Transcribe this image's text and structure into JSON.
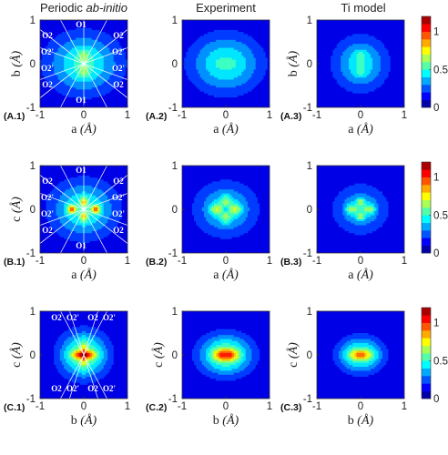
{
  "figure": {
    "column_titles": [
      {
        "prefix": "Periodic ",
        "italic": "ab-initio"
      },
      {
        "prefix": "Experiment",
        "italic": ""
      },
      {
        "prefix": "Ti model",
        "italic": ""
      }
    ],
    "axis_unit": "(Å)"
  },
  "chart_data": [
    {
      "type": "heatmap",
      "id": "A.1",
      "label": "(A.1)",
      "xlabel": "a",
      "ylabel": "b",
      "xlim": [
        -1,
        1
      ],
      "ylim": [
        -1,
        1
      ],
      "xticks": [
        "-1",
        "0",
        "1"
      ],
      "yticks": [
        "-1",
        "0",
        "1"
      ],
      "plane": "ab",
      "source": "abinitio",
      "oxygen_labels": [
        "O1",
        "O1",
        "O2",
        "O2",
        "O2'",
        "O2'",
        "O2",
        "O2",
        "O2'",
        "O2'"
      ]
    },
    {
      "type": "heatmap",
      "id": "A.2",
      "label": "(A.2)",
      "xlabel": "a",
      "ylabel": "",
      "xlim": [
        -1,
        1
      ],
      "ylim": [
        -1,
        1
      ],
      "xticks": [
        "-1",
        "0",
        "1"
      ],
      "yticks": [
        "-1",
        "0",
        "1"
      ],
      "plane": "ab",
      "source": "experiment"
    },
    {
      "type": "heatmap",
      "id": "A.3",
      "label": "(A.3)",
      "xlabel": "a",
      "ylabel": "b",
      "xlim": [
        -1,
        1
      ],
      "ylim": [
        -1,
        1
      ],
      "xticks": [
        "-1",
        "0",
        "1"
      ],
      "yticks": [
        "-1",
        "0",
        "1"
      ],
      "plane": "ab",
      "source": "ti"
    },
    {
      "type": "heatmap",
      "id": "B.1",
      "label": "(B.1)",
      "xlabel": "a",
      "ylabel": "c",
      "xlim": [
        -1,
        1
      ],
      "ylim": [
        -1,
        1
      ],
      "xticks": [
        "-1",
        "0",
        "1"
      ],
      "yticks": [
        "-1",
        "0",
        "1"
      ],
      "plane": "ac",
      "source": "abinitio",
      "oxygen_labels": [
        "O1",
        "O1",
        "O2",
        "O2",
        "O2'",
        "O2'",
        "O2",
        "O2",
        "O2'",
        "O2'"
      ]
    },
    {
      "type": "heatmap",
      "id": "B.2",
      "label": "(B.2)",
      "xlabel": "a",
      "ylabel": "",
      "xlim": [
        -1,
        1
      ],
      "ylim": [
        -1,
        1
      ],
      "xticks": [
        "-1",
        "0",
        "1"
      ],
      "yticks": [
        "-1",
        "0",
        "1"
      ],
      "plane": "ac",
      "source": "experiment"
    },
    {
      "type": "heatmap",
      "id": "B.3",
      "label": "(B.3)",
      "xlabel": "a",
      "ylabel": "",
      "xlim": [
        -1,
        1
      ],
      "ylim": [
        -1,
        1
      ],
      "xticks": [
        "-1",
        "0",
        "1"
      ],
      "yticks": [
        "-1",
        "0",
        "1"
      ],
      "plane": "ac",
      "source": "ti"
    },
    {
      "type": "heatmap",
      "id": "C.1",
      "label": "(C.1)",
      "xlabel": "b",
      "ylabel": "c",
      "xlim": [
        -1,
        1
      ],
      "ylim": [
        -1,
        1
      ],
      "xticks": [
        "-1",
        "0",
        "1"
      ],
      "yticks": [
        "-1",
        "0",
        "1"
      ],
      "plane": "bc",
      "source": "abinitio",
      "oxygen_labels": [
        "O2",
        "O2'",
        "O2",
        "O2'",
        "O2",
        "O2'",
        "O2",
        "O2'"
      ]
    },
    {
      "type": "heatmap",
      "id": "C.2",
      "label": "(C.2)",
      "xlabel": "b",
      "ylabel": "c",
      "xlim": [
        -1,
        1
      ],
      "ylim": [
        -1,
        1
      ],
      "xticks": [
        "-1",
        "0",
        "1"
      ],
      "yticks": [
        "-1",
        "0",
        "1"
      ],
      "plane": "bc",
      "source": "experiment"
    },
    {
      "type": "heatmap",
      "id": "C.3",
      "label": "(C.3)",
      "xlabel": "b",
      "ylabel": "c",
      "xlim": [
        -1,
        1
      ],
      "ylim": [
        -1,
        1
      ],
      "xticks": [
        "-1",
        "0",
        "1"
      ],
      "yticks": [
        "-1",
        "0",
        "1"
      ],
      "plane": "bc",
      "source": "ti"
    }
  ],
  "colorbars": [
    {
      "row": "A",
      "ticks": [
        "0",
        "0.5",
        "1"
      ],
      "range": [
        0,
        1.2
      ]
    },
    {
      "row": "B",
      "ticks": [
        "0",
        "0.5",
        "1"
      ],
      "range": [
        0,
        1.2
      ]
    },
    {
      "row": "C",
      "ticks": [
        "0",
        "0.5",
        "1"
      ],
      "range": [
        0,
        1.2
      ]
    }
  ],
  "colormap": "jet"
}
